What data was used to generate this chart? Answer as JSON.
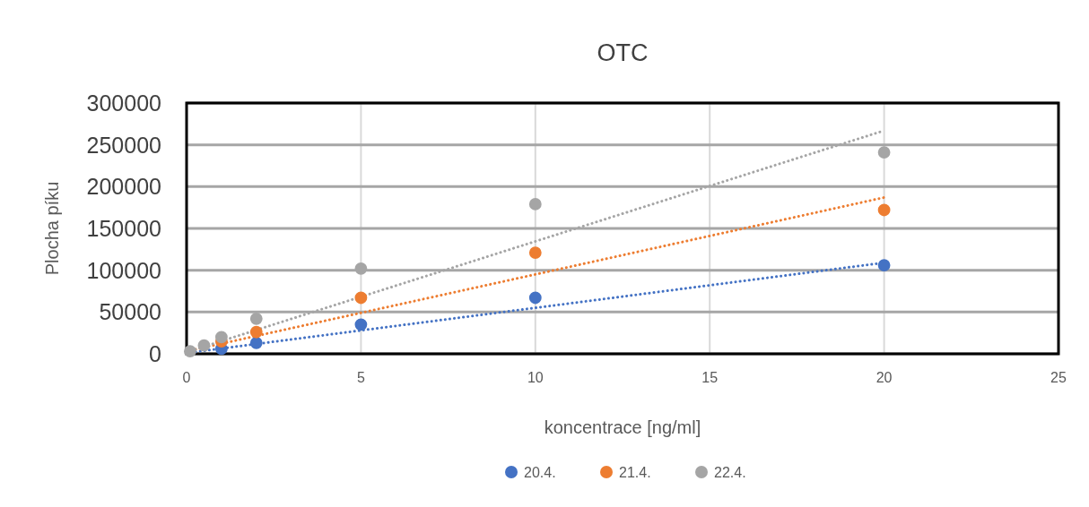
{
  "chart_data": {
    "type": "scatter",
    "title": "OTC",
    "xlabel": "koncentrace [ng/ml]",
    "ylabel": "Plocha píku",
    "xlim": [
      0,
      25
    ],
    "xticks": [
      0,
      5,
      10,
      15,
      20,
      25
    ],
    "ylim": [
      0,
      300000
    ],
    "yticks": [
      0,
      50000,
      100000,
      150000,
      200000,
      250000,
      300000
    ],
    "grid": true,
    "legend": "bottom",
    "marker": "circle",
    "series": [
      {
        "name": "20.4.",
        "color": "#4472c4",
        "x": [
          1,
          2,
          5,
          10,
          20
        ],
        "values": [
          6000,
          13000,
          35000,
          67000,
          106000
        ]
      },
      {
        "name": "21.4.",
        "color": "#ed7d31",
        "x": [
          1,
          2,
          5,
          10,
          20
        ],
        "values": [
          15000,
          26000,
          67000,
          121000,
          172000
        ]
      },
      {
        "name": "22.4.",
        "color": "#a5a5a5",
        "x": [
          0.1,
          0.5,
          1,
          2,
          5,
          10,
          20
        ],
        "values": [
          3000,
          10000,
          20000,
          42000,
          102000,
          179000,
          241000
        ]
      },
      {
        "type": "line",
        "color": "#4472c4",
        "line_style": "dotted",
        "marker": "none",
        "x": [
          0,
          20
        ],
        "values": [
          1000,
          109000
        ]
      },
      {
        "type": "line",
        "color": "#ed7d31",
        "line_style": "dotted",
        "marker": "none",
        "x": [
          0,
          20
        ],
        "values": [
          3000,
          187000
        ]
      },
      {
        "type": "line",
        "color": "#a5a5a5",
        "line_style": "dotted",
        "marker": "none",
        "x": [
          0,
          20
        ],
        "values": [
          2000,
          267000
        ]
      }
    ]
  }
}
